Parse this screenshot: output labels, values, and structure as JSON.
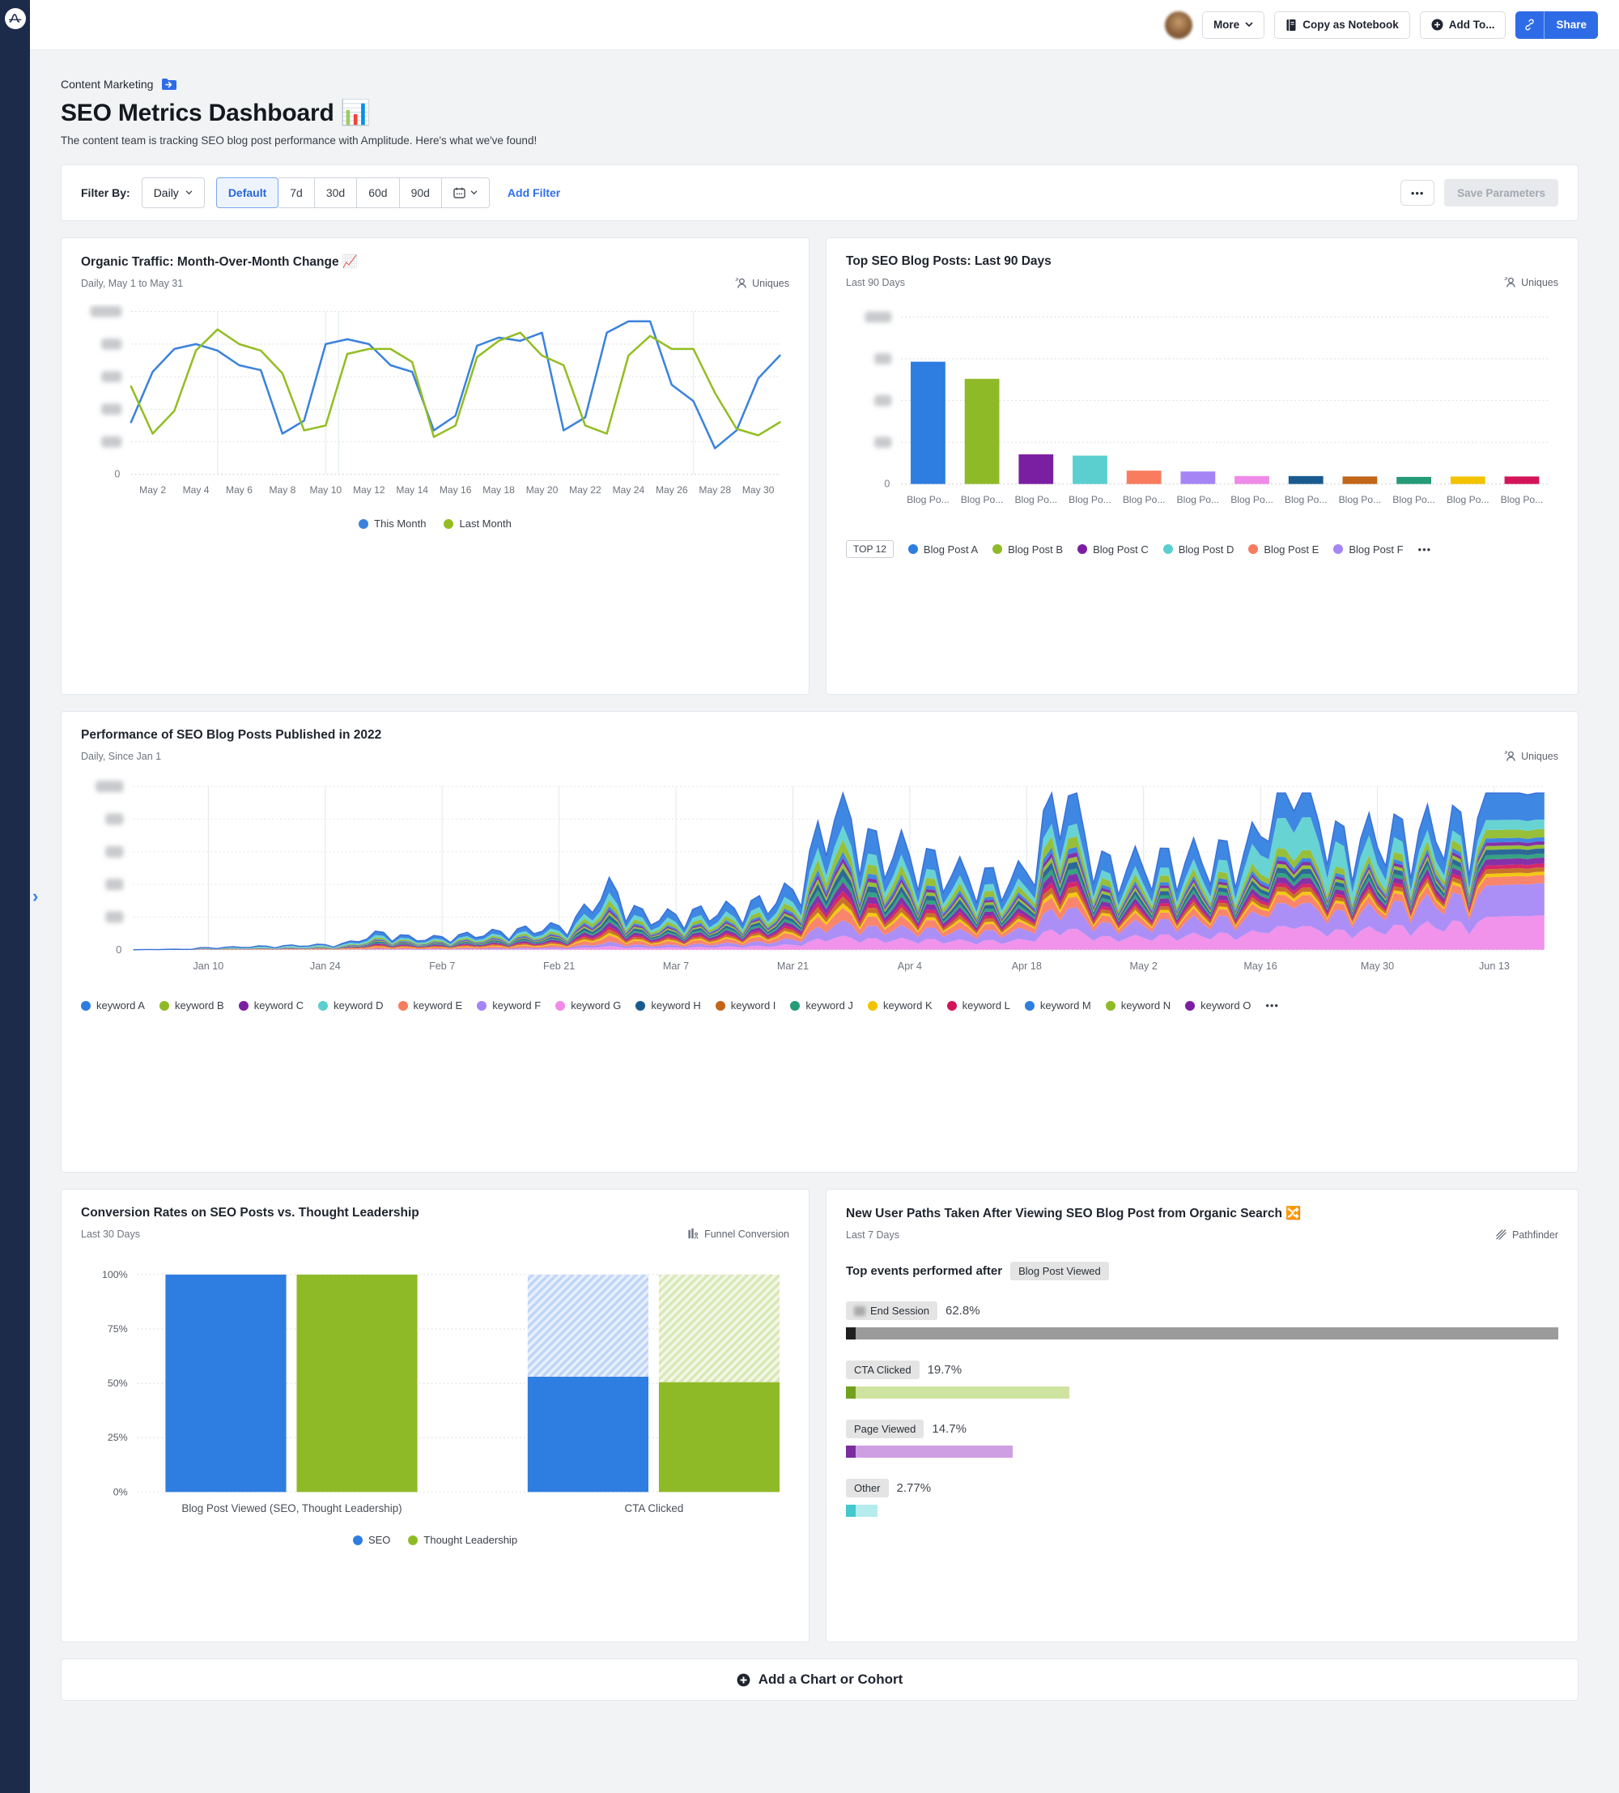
{
  "topbar": {
    "more_label": "More",
    "copy_notebook_label": "Copy as Notebook",
    "add_to_label": "Add To...",
    "share_label": "Share"
  },
  "header": {
    "breadcrumb": "Content Marketing",
    "title": "SEO Metrics Dashboard 📊",
    "subtitle": "The content team is tracking SEO blog post performance with Amplitude. Here's what we've found!"
  },
  "filter_bar": {
    "label": "Filter By:",
    "interval": "Daily",
    "ranges": [
      "Default",
      "7d",
      "30d",
      "60d",
      "90d"
    ],
    "selected_range": "Default",
    "add_filter_label": "Add Filter",
    "more_label": "•••",
    "save_label": "Save Parameters"
  },
  "add_chart_label": "Add a Chart or Cohort",
  "chart_data": [
    {
      "type": "line",
      "title": "Organic Traffic: Month-Over-Month Change 📈",
      "subtitle": "Daily, May 1 to May 31",
      "metric": "Uniques",
      "x_ticks": [
        "May 2",
        "May 4",
        "May 6",
        "May 8",
        "May 10",
        "May 12",
        "May 14",
        "May 16",
        "May 18",
        "May 20",
        "May 22",
        "May 24",
        "May 26",
        "May 28",
        "May 30"
      ],
      "y_axis": "redacted-blurred, baseline 0",
      "ylim": [
        0,
        100
      ],
      "series": [
        {
          "name": "This Month",
          "color": "#3b82dd",
          "values": [
            32,
            63,
            77,
            80,
            76,
            67,
            64,
            25,
            33,
            80,
            83,
            80,
            67,
            63,
            27,
            36,
            79,
            84,
            82,
            87,
            27,
            35,
            87,
            94,
            94,
            55,
            45,
            16,
            27,
            59,
            73
          ]
        },
        {
          "name": "Last Month",
          "color": "#93bd22",
          "values": [
            54,
            25,
            39,
            76,
            89,
            80,
            76,
            62,
            27,
            30,
            74,
            77,
            77,
            69,
            23,
            30,
            72,
            82,
            87,
            73,
            67,
            30,
            25,
            73,
            85,
            77,
            77,
            50,
            28,
            24,
            32
          ]
        }
      ]
    },
    {
      "type": "bar",
      "title": "Top SEO Blog Posts: Last 90 Days",
      "subtitle": "Last 90 Days",
      "metric": "Uniques",
      "categories": [
        "Blog Po...",
        "Blog Po...",
        "Blog Po...",
        "Blog Po...",
        "Blog Po...",
        "Blog Po...",
        "Blog Po...",
        "Blog Po...",
        "Blog Po...",
        "Blog Po...",
        "Blog Po...",
        "Blog Po..."
      ],
      "values": [
        29.3,
        25.2,
        7.1,
        6.8,
        3.2,
        3.0,
        1.9,
        1.9,
        1.8,
        1.7,
        1.8,
        1.8
      ],
      "ylim": [
        0,
        40
      ],
      "y_axis": "redacted-blurred, baseline 0",
      "colors": [
        "#2e7de0",
        "#8fba28",
        "#7b1fa2",
        "#5bcfcf",
        "#f97c5f",
        "#a585f5",
        "#f08ae8",
        "#1a5b8f",
        "#c2661a",
        "#259b77",
        "#f3c300",
        "#d4145a"
      ],
      "legend": {
        "badge": "TOP 12",
        "items": [
          {
            "label": "Blog Post A",
            "color": "#2e7de0"
          },
          {
            "label": "Blog Post B",
            "color": "#8fba28"
          },
          {
            "label": "Blog Post C",
            "color": "#7b1fa2"
          },
          {
            "label": "Blog Post D",
            "color": "#5bcfcf"
          },
          {
            "label": "Blog Post E",
            "color": "#f97c5f"
          },
          {
            "label": "Blog Post F",
            "color": "#a585f5"
          }
        ],
        "more": "•••"
      }
    },
    {
      "type": "area",
      "title": "Performance of SEO Blog Posts Published in 2022",
      "subtitle": "Daily, Since Jan 1",
      "metric": "Uniques",
      "x_ticks": [
        "Jan 10",
        "Jan 24",
        "Feb 7",
        "Feb 21",
        "Mar 7",
        "Mar 21",
        "Apr 4",
        "Apr 18",
        "May 2",
        "May 16",
        "May 30",
        "Jun 13"
      ],
      "y_axis": "redacted-blurred, baseline 0",
      "series": [
        {
          "name": "keyword A",
          "color": "#2e7de0"
        },
        {
          "name": "keyword B",
          "color": "#8fba28"
        },
        {
          "name": "keyword C",
          "color": "#7b1fa2"
        },
        {
          "name": "keyword D",
          "color": "#5bcfcf"
        },
        {
          "name": "keyword E",
          "color": "#f97c5f"
        },
        {
          "name": "keyword F",
          "color": "#a585f5"
        },
        {
          "name": "keyword G",
          "color": "#f08ae8"
        },
        {
          "name": "keyword H",
          "color": "#1a5b8f"
        },
        {
          "name": "keyword I",
          "color": "#c2661a"
        },
        {
          "name": "keyword J",
          "color": "#259b77"
        },
        {
          "name": "keyword K",
          "color": "#f3c300"
        },
        {
          "name": "keyword L",
          "color": "#d4145a"
        },
        {
          "name": "keyword M",
          "color": "#2e7de0"
        },
        {
          "name": "keyword N",
          "color": "#8fba28"
        },
        {
          "name": "keyword O",
          "color": "#7b1fa2"
        }
      ],
      "legend_more": "•••"
    },
    {
      "type": "funnel-bar",
      "title": "Conversion Rates on SEO Posts vs. Thought Leadership",
      "subtitle": "Last 30 Days",
      "metric": "Funnel Conversion",
      "y_ticks": [
        "0%",
        "25%",
        "50%",
        "75%",
        "100%"
      ],
      "steps": [
        {
          "label": "Blog Post Viewed (SEO, Thought Leadership)",
          "SEO": 100,
          "Thought Leadership": 100
        },
        {
          "label": "CTA Clicked",
          "SEO": 53,
          "Thought Leadership": 50.5
        }
      ],
      "series": [
        {
          "name": "SEO",
          "color": "#2e7de0"
        },
        {
          "name": "Thought Leadership",
          "color": "#8fba28"
        }
      ]
    },
    {
      "type": "path-bars",
      "title": "New User Paths Taken After Viewing SEO Blog Post from Organic Search 🔀",
      "subtitle": "Last 7 Days",
      "metric": "Pathfinder",
      "heading": "Top events performed after",
      "anchor_event": "Blog Post Viewed",
      "events": [
        {
          "name": "End Session",
          "pct": "62.8%",
          "value": 62.8,
          "cap": "#1f1f1f",
          "fill": "#9b9b9b",
          "blurred_icon": true
        },
        {
          "name": "CTA Clicked",
          "pct": "19.7%",
          "value": 19.7,
          "cap": "#71a11e",
          "fill": "#cfe3a0",
          "blurred_icon": false
        },
        {
          "name": "Page Viewed",
          "pct": "14.7%",
          "value": 14.7,
          "cap": "#7b2d9e",
          "fill": "#cf9fe3",
          "blurred_icon": false
        },
        {
          "name": "Other",
          "pct": "2.77%",
          "value": 2.77,
          "cap": "#45c8cc",
          "fill": "#b5ecee",
          "blurred_icon": false
        }
      ]
    }
  ]
}
